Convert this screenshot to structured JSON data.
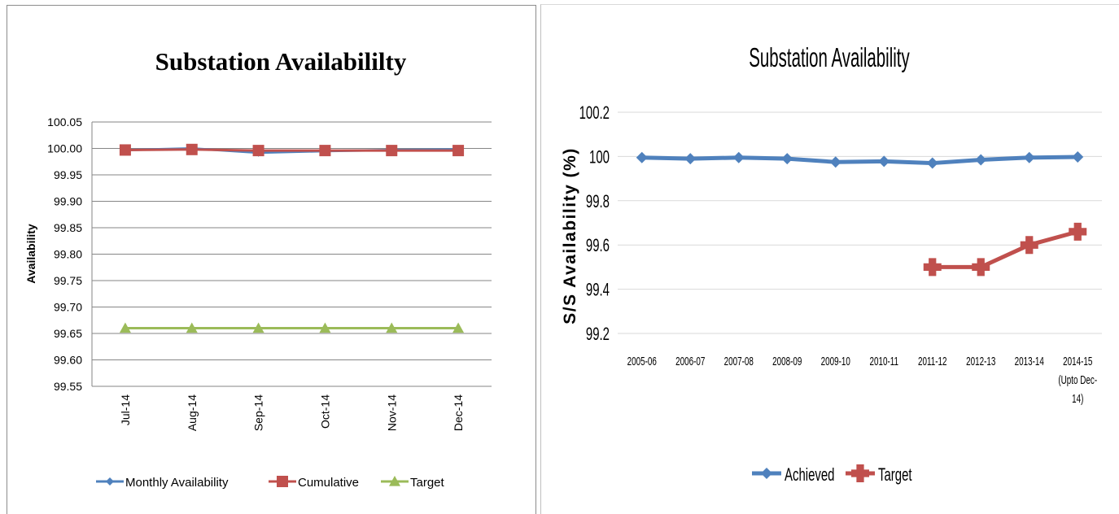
{
  "chart_data": [
    {
      "type": "line",
      "title": "Substation  Availabililty",
      "xlabel": "",
      "ylabel": "Availability",
      "categories": [
        "Jul-14",
        "Aug-14",
        "Sep-14",
        "Oct-14",
        "Nov-14",
        "Dec-14"
      ],
      "ylim": [
        99.55,
        100.05
      ],
      "yticks": [
        "99.55",
        "99.60",
        "99.65",
        "99.70",
        "99.75",
        "99.80",
        "99.85",
        "99.90",
        "99.95",
        "100.00",
        "100.05"
      ],
      "grid": true,
      "legend": "bottom",
      "series": [
        {
          "name": "Monthly Availability",
          "values": [
            99.997,
            100.0,
            99.992,
            99.995,
            99.997,
            99.998
          ],
          "color": "#4f81bd",
          "marker": "diamond"
        },
        {
          "name": "Cumulative",
          "values": [
            99.997,
            99.998,
            99.996,
            99.996,
            99.996,
            99.996
          ],
          "color": "#c0504d",
          "marker": "square"
        },
        {
          "name": "Target",
          "values": [
            99.66,
            99.66,
            99.66,
            99.66,
            99.66,
            99.66
          ],
          "color": "#9bbb59",
          "marker": "triangle"
        }
      ]
    },
    {
      "type": "line",
      "title": "Substation Availability",
      "xlabel": "",
      "ylabel": "S/S Availability (%)",
      "categories": [
        "2005-06",
        "2006-07",
        "2007-08",
        "2008-09",
        "2009-10",
        "2010-11",
        "2011-12",
        "2012-13",
        "2013-14",
        "2014-15 (Upto Dec-14)"
      ],
      "category_lines": [
        [
          "2005-06"
        ],
        [
          "2006-07"
        ],
        [
          "2007-08"
        ],
        [
          "2008-09"
        ],
        [
          "2009-10"
        ],
        [
          "2010-11"
        ],
        [
          "2011-12"
        ],
        [
          "2012-13"
        ],
        [
          "2013-14"
        ],
        [
          "2014-15",
          "(Upto Dec-",
          "14)"
        ]
      ],
      "ylim": [
        99.2,
        100.2
      ],
      "yticks": [
        "99.2",
        "99.4",
        "99.6",
        "99.8",
        "100",
        "100.2"
      ],
      "grid": true,
      "legend": "bottom",
      "series": [
        {
          "name": "Achieved",
          "values": [
            99.995,
            99.99,
            99.995,
            99.99,
            99.975,
            99.978,
            99.97,
            99.985,
            99.995,
            99.998
          ],
          "color": "#4f81bd",
          "marker": "diamond"
        },
        {
          "name": "Target",
          "values": [
            null,
            null,
            null,
            null,
            null,
            null,
            99.5,
            99.5,
            99.6,
            99.66
          ],
          "color": "#c0504d",
          "marker": "plus"
        }
      ]
    }
  ]
}
